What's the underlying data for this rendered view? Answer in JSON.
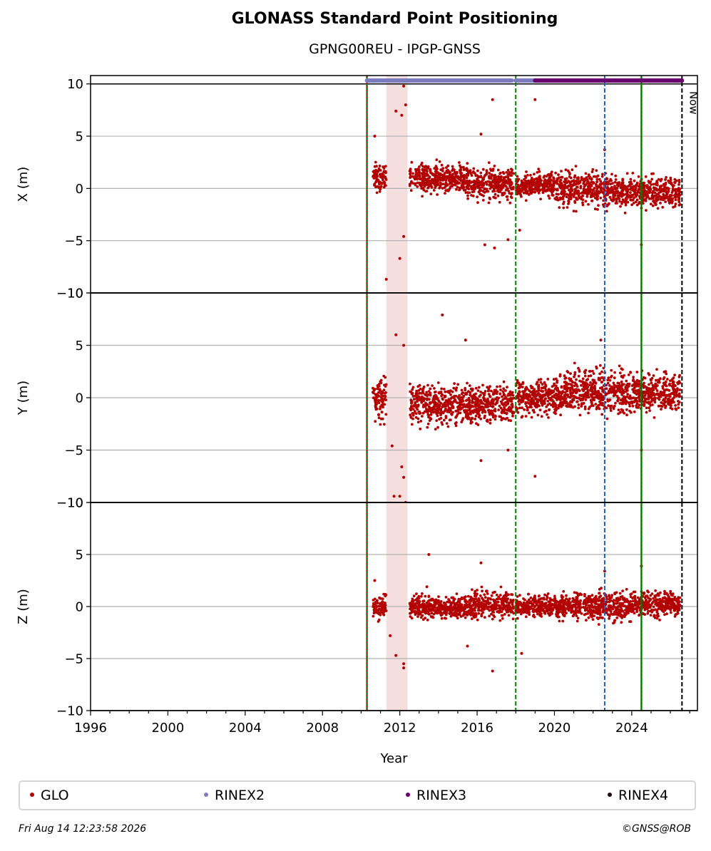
{
  "title": "GLONASS Standard Point Positioning",
  "subtitle": "GPNG00REU - IPGP-GNSS",
  "footer": {
    "timestamp": "Fri Aug 14 12:23:58 2026",
    "credit": "©GNSS@ROB"
  },
  "now_label": "Now",
  "colors": {
    "glo": "#b30000",
    "rinex2": "#7b7bbd",
    "rinex3": "#6a0070",
    "rinex4": "#1a0a1a",
    "green_line": "#008000",
    "blue_line": "#1f5fbf",
    "gap": "#f4dede"
  },
  "legend": [
    {
      "label": "GLO",
      "color": "#b30000"
    },
    {
      "label": "RINEX2",
      "color": "#7b7bbd"
    },
    {
      "label": "RINEX3",
      "color": "#6a0070"
    },
    {
      "label": "RINEX4",
      "color": "#1a0a1a"
    }
  ],
  "chart_data": {
    "type": "scatter",
    "xlabel": "Year",
    "xlim": [
      1996,
      2027.4
    ],
    "x_ticks": [
      "1996",
      "2000",
      "2004",
      "2008",
      "2012",
      "2016",
      "2020",
      "2024"
    ],
    "panels": [
      {
        "ylabel": "X (m)",
        "ylim": [
          -10,
          10.8
        ],
        "y_ticks": [
          "10",
          "5",
          "0",
          "−5",
          "−10"
        ],
        "series_segments": [
          {
            "x": [
              2010.6,
              2011.3
            ],
            "center": 1.0,
            "spread": 1.3
          },
          {
            "x": [
              2012.5,
              2015.5
            ],
            "center": 1.0,
            "spread": 1.2
          },
          {
            "x": [
              2015.5,
              2017.9
            ],
            "center": 0.5,
            "spread": 1.3
          },
          {
            "x": [
              2018.0,
              2020.0
            ],
            "center": 0.3,
            "spread": 1.0
          },
          {
            "x": [
              2020.0,
              2023.0
            ],
            "center": 0.0,
            "spread": 1.4
          },
          {
            "x": [
              2023.0,
              2026.5
            ],
            "center": -0.4,
            "spread": 1.2
          }
        ],
        "outliers": [
          [
            2011.3,
            -8.7
          ],
          [
            2011.8,
            7.4
          ],
          [
            2012.1,
            7.0
          ],
          [
            2012.2,
            9.8
          ],
          [
            2012.3,
            8.0
          ],
          [
            2012.0,
            -6.7
          ],
          [
            2012.2,
            -4.6
          ],
          [
            2010.7,
            5.0
          ],
          [
            2016.8,
            8.5
          ],
          [
            2019.0,
            8.5
          ],
          [
            2016.2,
            5.2
          ],
          [
            2016.9,
            -5.7
          ],
          [
            2016.4,
            -5.4
          ],
          [
            2017.6,
            -4.9
          ],
          [
            2018.2,
            -4.0
          ],
          [
            2024.5,
            -5.4
          ],
          [
            2022.6,
            3.7
          ]
        ]
      },
      {
        "ylabel": "Y (m)",
        "ylim": [
          -10,
          10
        ],
        "y_ticks": [
          "10",
          "5",
          "0",
          "−5",
          "−10"
        ],
        "series_segments": [
          {
            "x": [
              2010.6,
              2011.3
            ],
            "center": 0.0,
            "spread": 1.8
          },
          {
            "x": [
              2012.5,
              2017.9
            ],
            "center": -0.6,
            "spread": 1.5
          },
          {
            "x": [
              2018.0,
              2020.5
            ],
            "center": 0.0,
            "spread": 1.5
          },
          {
            "x": [
              2020.5,
              2024.0
            ],
            "center": 0.6,
            "spread": 1.8
          },
          {
            "x": [
              2024.0,
              2026.5
            ],
            "center": 0.5,
            "spread": 1.5
          }
        ],
        "outliers": [
          [
            2014.2,
            7.9
          ],
          [
            2011.8,
            6.0
          ],
          [
            2012.2,
            5.0
          ],
          [
            2011.7,
            -9.4
          ],
          [
            2011.8,
            -10.3
          ],
          [
            2012.0,
            -9.4
          ],
          [
            2012.1,
            -6.6
          ],
          [
            2012.2,
            -7.6
          ],
          [
            2012.3,
            -10.0
          ],
          [
            2011.6,
            -4.6
          ],
          [
            2015.4,
            5.5
          ],
          [
            2016.2,
            -6.0
          ],
          [
            2019.0,
            -7.5
          ],
          [
            2024.5,
            -5.0
          ],
          [
            2022.4,
            5.5
          ],
          [
            2017.6,
            -5.0
          ]
        ]
      },
      {
        "ylabel": "Z (m)",
        "ylim": [
          -10,
          10
        ],
        "y_ticks": [
          "10",
          "5",
          "0",
          "−5",
          "−10"
        ],
        "series_segments": [
          {
            "x": [
              2010.6,
              2011.3
            ],
            "center": 0.0,
            "spread": 0.9
          },
          {
            "x": [
              2012.5,
              2015.5
            ],
            "center": -0.1,
            "spread": 0.9
          },
          {
            "x": [
              2015.5,
              2017.9
            ],
            "center": 0.1,
            "spread": 1.1
          },
          {
            "x": [
              2018.0,
              2021.0
            ],
            "center": 0.0,
            "spread": 0.9
          },
          {
            "x": [
              2021.0,
              2024.0
            ],
            "center": 0.1,
            "spread": 1.3
          },
          {
            "x": [
              2024.0,
              2026.5
            ],
            "center": 0.3,
            "spread": 1.0
          }
        ],
        "outliers": [
          [
            2013.5,
            5.0
          ],
          [
            2016.2,
            4.2
          ],
          [
            2011.8,
            -4.7
          ],
          [
            2012.2,
            -5.5
          ],
          [
            2012.2,
            -5.9
          ],
          [
            2011.5,
            -2.8
          ],
          [
            2015.5,
            -3.8
          ],
          [
            2016.8,
            -6.2
          ],
          [
            2018.3,
            -4.5
          ],
          [
            2024.5,
            3.9
          ],
          [
            2022.6,
            3.4
          ],
          [
            2010.7,
            2.5
          ],
          [
            2013.4,
            1.9
          ]
        ]
      }
    ],
    "vertical_lines": [
      {
        "x": 2010.3,
        "style": "green-red"
      },
      {
        "x": 2018.0,
        "style": "green"
      },
      {
        "x": 2022.6,
        "style": "blue"
      },
      {
        "x": 2024.5,
        "style": "green-red"
      },
      {
        "x": 2026.6,
        "style": "black-now"
      }
    ],
    "gap_band": [
      2011.3,
      2012.4
    ],
    "format_bars": [
      {
        "format": "RINEX2",
        "x": [
          2010.3,
          2017.8
        ]
      },
      {
        "format": "RINEX2",
        "x": [
          2018.0,
          2019.0
        ]
      },
      {
        "format": "RINEX3",
        "x": [
          2019.0,
          2026.6
        ]
      }
    ]
  }
}
